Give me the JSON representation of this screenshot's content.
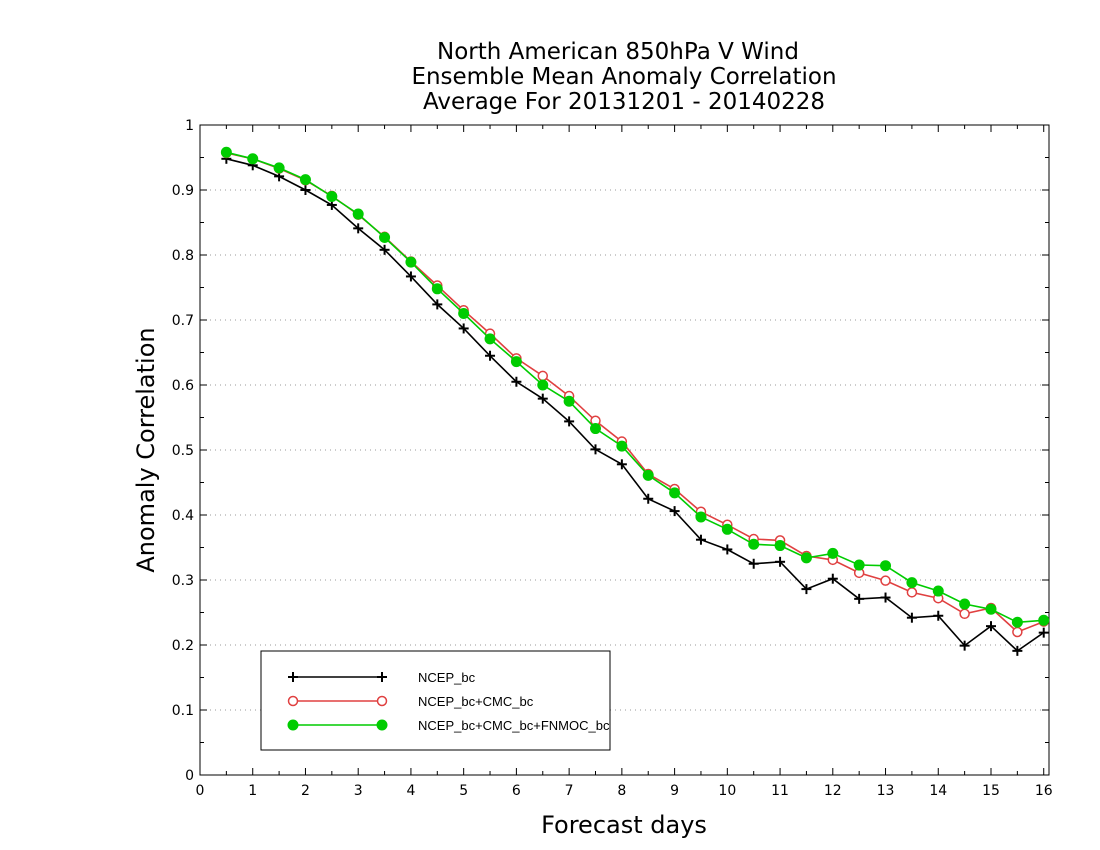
{
  "chart_data": {
    "type": "line",
    "title_lines": [
      "North American 850hPa V Wind",
      "Ensemble Mean Anomaly Correlation",
      "Average For 20131201 - 20140228"
    ],
    "xlabel": "Forecast days",
    "ylabel": "Anomaly Correlation",
    "xlim": [
      0,
      16.1
    ],
    "ylim": [
      0,
      1
    ],
    "xticks": [
      0,
      1,
      2,
      3,
      4,
      5,
      6,
      7,
      8,
      9,
      10,
      11,
      12,
      13,
      14,
      15,
      16
    ],
    "yticks": [
      0,
      0.1,
      0.2,
      0.3,
      0.4,
      0.5,
      0.6,
      0.7,
      0.8,
      0.9,
      1
    ],
    "xtick_labels": [
      "0",
      "1",
      "2",
      "3",
      "4",
      "5",
      "6",
      "7",
      "8",
      "9",
      "10",
      "11",
      "12",
      "13",
      "14",
      "15",
      "16"
    ],
    "ytick_labels": [
      "0",
      "0.1",
      "0.2",
      "0.3",
      "0.4",
      "0.5",
      "0.6",
      "0.7",
      "0.8",
      "0.9",
      "1"
    ],
    "grid": "horizontal dotted",
    "legend_position": "bottom-left",
    "x": [
      0.5,
      1,
      1.5,
      2,
      2.5,
      3,
      3.5,
      4,
      4.5,
      5,
      5.5,
      6,
      6.5,
      7,
      7.5,
      8,
      8.5,
      9,
      9.5,
      10,
      10.5,
      11,
      11.5,
      12,
      12.5,
      13,
      13.5,
      14,
      14.5,
      15,
      15.5,
      16
    ],
    "series": [
      {
        "name": "NCEP_bc",
        "color": "#000000",
        "marker": "plus",
        "values": [
          0.948,
          0.938,
          0.921,
          0.9,
          0.877,
          0.841,
          0.808,
          0.767,
          0.724,
          0.687,
          0.645,
          0.605,
          0.579,
          0.544,
          0.501,
          0.478,
          0.425,
          0.406,
          0.362,
          0.347,
          0.325,
          0.328,
          0.286,
          0.302,
          0.271,
          0.273,
          0.242,
          0.245,
          0.199,
          0.229,
          0.191,
          0.219
        ]
      },
      {
        "name": "NCEP_bc+CMC_bc",
        "color": "#e04040",
        "marker": "open-circle",
        "values": [
          0.957,
          0.948,
          0.933,
          0.915,
          0.891,
          0.862,
          0.828,
          0.79,
          0.753,
          0.715,
          0.679,
          0.641,
          0.614,
          0.583,
          0.545,
          0.513,
          0.463,
          0.44,
          0.405,
          0.385,
          0.363,
          0.361,
          0.337,
          0.331,
          0.311,
          0.299,
          0.281,
          0.272,
          0.248,
          0.257,
          0.22,
          0.236
        ]
      },
      {
        "name": "NCEP_bc+CMC_bc+FNMOC_bc",
        "color": "#00cc00",
        "marker": "filled-circle",
        "values": [
          0.958,
          0.948,
          0.934,
          0.916,
          0.89,
          0.863,
          0.827,
          0.789,
          0.748,
          0.71,
          0.671,
          0.636,
          0.6,
          0.575,
          0.533,
          0.506,
          0.461,
          0.434,
          0.397,
          0.378,
          0.355,
          0.353,
          0.334,
          0.341,
          0.323,
          0.322,
          0.296,
          0.283,
          0.263,
          0.255,
          0.235,
          0.238
        ]
      }
    ]
  }
}
